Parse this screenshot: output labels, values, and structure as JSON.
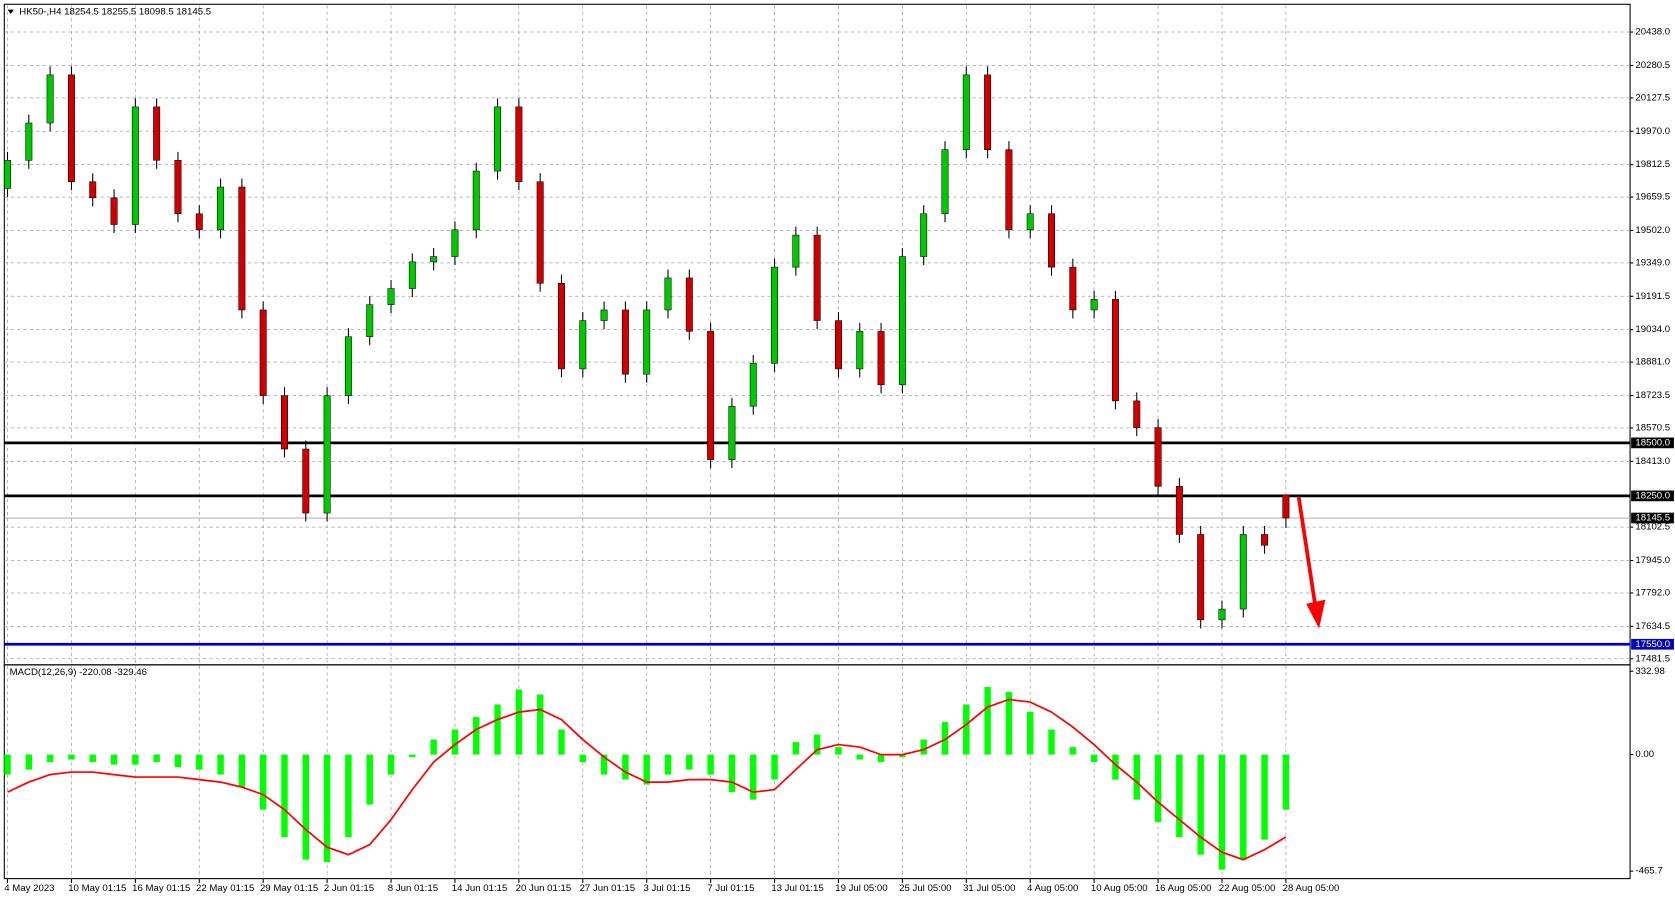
{
  "chart_data": [
    {
      "type": "candlestick",
      "title": "HK50-,H4  18254.5 18255.5 18098.5 18145.5",
      "categories": [
        "4 May 2023",
        null,
        null,
        "10 May 01:15",
        null,
        null,
        "16 May 01:15",
        null,
        null,
        "22 May 01:15",
        null,
        null,
        "29 May 01:15",
        null,
        null,
        "2 Jun 01:15",
        null,
        null,
        "8 Jun 01:15",
        null,
        null,
        "14 Jun 01:15",
        null,
        null,
        "20 Jun 01:15",
        null,
        null,
        "27 Jun 01:15",
        null,
        null,
        "3 Jul 01:15",
        null,
        null,
        "7 Jul 01:15",
        null,
        null,
        "13 Jul 01:15",
        null,
        null,
        "19 Jul 05:00",
        null,
        null,
        "25 Jul 05:00",
        null,
        null,
        "31 Jul 05:00",
        null,
        null,
        "4 Aug 05:00",
        null,
        null,
        "10 Aug 05:00",
        null,
        null,
        "16 Aug 05:00",
        null,
        null,
        "22 Aug 05:00",
        null,
        null,
        "28 Aug 05:00"
      ],
      "open": [
        19700,
        19833,
        20009,
        20236,
        19732,
        19656,
        19530,
        20085,
        19833,
        19581,
        19505,
        19707,
        19127,
        18723,
        18471,
        18169,
        18723,
        19001,
        19152,
        19228,
        19354,
        19379,
        19505,
        19782,
        20085,
        19732,
        19253,
        18849,
        19077,
        19127,
        18824,
        19127,
        19278,
        19026,
        18421,
        18673,
        18875,
        19329,
        19480,
        19077,
        18849,
        19026,
        18774,
        19379,
        19581,
        19883,
        20236,
        19883,
        19505,
        19581,
        19329,
        19127,
        19177,
        18698,
        18572,
        18295,
        18068,
        17665,
        17716,
        18068,
        18254.5
      ],
      "high": [
        19873,
        20049,
        20276,
        20276,
        19772,
        19696,
        20125,
        20125,
        19873,
        19621,
        19747,
        19747,
        19167,
        18763,
        18511,
        18763,
        19041,
        19192,
        19268,
        19394,
        19419,
        19545,
        19822,
        20125,
        20125,
        19772,
        19293,
        19117,
        19167,
        19167,
        19167,
        19318,
        19318,
        19066,
        18713,
        18915,
        19369,
        19520,
        19520,
        19117,
        19066,
        19066,
        19419,
        19621,
        19923,
        20276,
        20276,
        19923,
        19621,
        19621,
        19369,
        19217,
        19217,
        18738,
        18612,
        18335,
        18108,
        17756,
        18108,
        18108,
        18255.5
      ],
      "low": [
        19660,
        19793,
        19969,
        19692,
        19616,
        19490,
        19490,
        19793,
        19541,
        19465,
        19465,
        19087,
        18683,
        18431,
        18129,
        18129,
        18683,
        18961,
        19112,
        19188,
        19314,
        19339,
        19465,
        19742,
        19692,
        19213,
        18809,
        18809,
        19037,
        18784,
        18784,
        19087,
        18986,
        18381,
        18381,
        18633,
        18835,
        19289,
        19037,
        18809,
        18809,
        18734,
        18734,
        19339,
        19541,
        19843,
        19843,
        19465,
        19465,
        19289,
        19087,
        19087,
        18658,
        18532,
        18255,
        18028,
        17625,
        17625,
        17676,
        17977,
        18098.5
      ],
      "close": [
        19833,
        20009,
        20236,
        19732,
        19656,
        19530,
        20085,
        19833,
        19581,
        19505,
        19707,
        19127,
        18723,
        18471,
        18169,
        18723,
        19001,
        19152,
        19228,
        19354,
        19379,
        19505,
        19782,
        20085,
        19732,
        19253,
        18849,
        19077,
        19127,
        18824,
        19127,
        19278,
        19026,
        18421,
        18673,
        18875,
        19329,
        19480,
        19077,
        18849,
        19026,
        18774,
        19379,
        19581,
        19883,
        20236,
        19883,
        19505,
        19581,
        19329,
        19127,
        19177,
        18698,
        18572,
        18295,
        18068,
        17665,
        17716,
        18068,
        18017,
        18145.5
      ],
      "colors": {
        "up": "#00c800",
        "down": "#d00000",
        "wick": "#000000"
      },
      "ylim": [
        17463,
        20564
      ],
      "yticks": [
        {
          "value": 20438,
          "label": "20438.0"
        },
        {
          "value": 20280.5,
          "label": "20280.5"
        },
        {
          "value": 20127.5,
          "label": "20127.5"
        },
        {
          "value": 19970,
          "label": "19970.0"
        },
        {
          "value": 19812.5,
          "label": "19812.5"
        },
        {
          "value": 19659.5,
          "label": "19659.5"
        },
        {
          "value": 19502,
          "label": "19502.0"
        },
        {
          "value": 19349,
          "label": "19349.0"
        },
        {
          "value": 19191.5,
          "label": "19191.5"
        },
        {
          "value": 19034,
          "label": "19034.0"
        },
        {
          "value": 18881,
          "label": "18881.0"
        },
        {
          "value": 18723.5,
          "label": "18723.5"
        },
        {
          "value": 18570.5,
          "label": "18570.5"
        },
        {
          "value": 18413,
          "label": "18413.0"
        },
        {
          "value": 18102.5,
          "label": "18102.5"
        },
        {
          "value": 17945,
          "label": "17945.0"
        },
        {
          "value": 17792,
          "label": "17792.0"
        },
        {
          "value": 17634.5,
          "label": "17634.5"
        },
        {
          "value": 17481.5,
          "label": "17481.5"
        }
      ],
      "grid": true,
      "hlines": [
        {
          "value": 18500,
          "label": "18500.0",
          "color": "#000000"
        },
        {
          "value": 18250,
          "label": "18250.0",
          "color": "#000000"
        },
        {
          "value": 17550,
          "label": "17550.0",
          "color": "#0000c0"
        }
      ],
      "price_line": {
        "value": 18145.5,
        "label": "18145.5",
        "color": "#a0a0a0"
      }
    },
    {
      "type": "macd",
      "title": "MACD(12,26,9) -220.08 -329.46",
      "histogram": {
        "color": "#00ff00",
        "values": [
          -80,
          -60,
          -30,
          -20,
          -30,
          -40,
          -40,
          -30,
          -50,
          -60,
          -80,
          -130,
          -220,
          -330,
          -420,
          -430,
          -330,
          -200,
          -80,
          -10,
          60,
          100,
          150,
          200,
          260,
          240,
          100,
          -30,
          -80,
          -100,
          -120,
          -80,
          -60,
          -80,
          -150,
          -180,
          -100,
          50,
          80,
          30,
          -20,
          -30,
          -10,
          60,
          130,
          200,
          270,
          250,
          170,
          100,
          30,
          -30,
          -100,
          -180,
          -270,
          -330,
          -400,
          -460,
          -420,
          -340,
          -220.08
        ]
      },
      "signal": {
        "color": "#ff0000",
        "values": [
          -150,
          -110,
          -80,
          -70,
          -70,
          -80,
          -90,
          -90,
          -90,
          -100,
          -110,
          -130,
          -160,
          -220,
          -300,
          -370,
          -400,
          -360,
          -260,
          -140,
          -30,
          40,
          100,
          140,
          170,
          180,
          140,
          60,
          -10,
          -70,
          -110,
          -110,
          -100,
          -100,
          -110,
          -150,
          -140,
          -60,
          20,
          40,
          30,
          0,
          0,
          20,
          60,
          120,
          190,
          220,
          210,
          170,
          110,
          40,
          -40,
          -110,
          -190,
          -260,
          -330,
          -390,
          -420,
          -380,
          -329.46
        ]
      },
      "ylim": [
        -495.7,
        358.6
      ],
      "yticks": [
        332.98,
        {
          "value": 0,
          "label": "0.00"
        },
        -465.7
      ]
    }
  ]
}
